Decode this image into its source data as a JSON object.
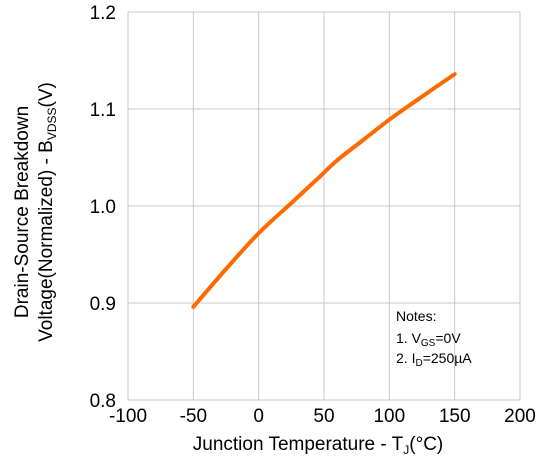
{
  "chart_data": {
    "type": "line",
    "xlabel": {
      "main": "Junction Temperature - T",
      "sub": "J",
      "unit": "(°C)"
    },
    "ylabel": {
      "line1": "Drain-Source Breakdown",
      "line2_main": "Voltage(Normalized) - B",
      "line2_sub": "VDSS",
      "line2_unit": "(V)"
    },
    "xlim": [
      -100,
      200
    ],
    "ylim": [
      0.8,
      1.2
    ],
    "x_ticks": [
      -100,
      -50,
      0,
      50,
      100,
      150,
      200
    ],
    "y_ticks": [
      0.8,
      0.9,
      1.0,
      1.1,
      1.2
    ],
    "x_tick_labels": [
      "-100",
      "-50",
      "0",
      "50",
      "100",
      "150",
      "200"
    ],
    "y_tick_labels": [
      "0.8",
      "0.9",
      "1.0",
      "1.1",
      "1.2"
    ],
    "grid": true,
    "series": [
      {
        "color": "#ff6a00",
        "x": [
          -50,
          -25,
          0,
          25,
          45,
          60,
          80,
          100,
          120,
          150
        ],
        "y": [
          0.896,
          0.935,
          0.972,
          1.003,
          1.028,
          1.047,
          1.068,
          1.089,
          1.108,
          1.136
        ]
      }
    ],
    "notes": {
      "title": "Notes:",
      "item1": {
        "prefix": "1. V",
        "sub": "GS",
        "suffix": "=0V"
      },
      "item2": {
        "prefix": "2. I",
        "sub": "D",
        "suffix": "=250µA"
      }
    }
  }
}
